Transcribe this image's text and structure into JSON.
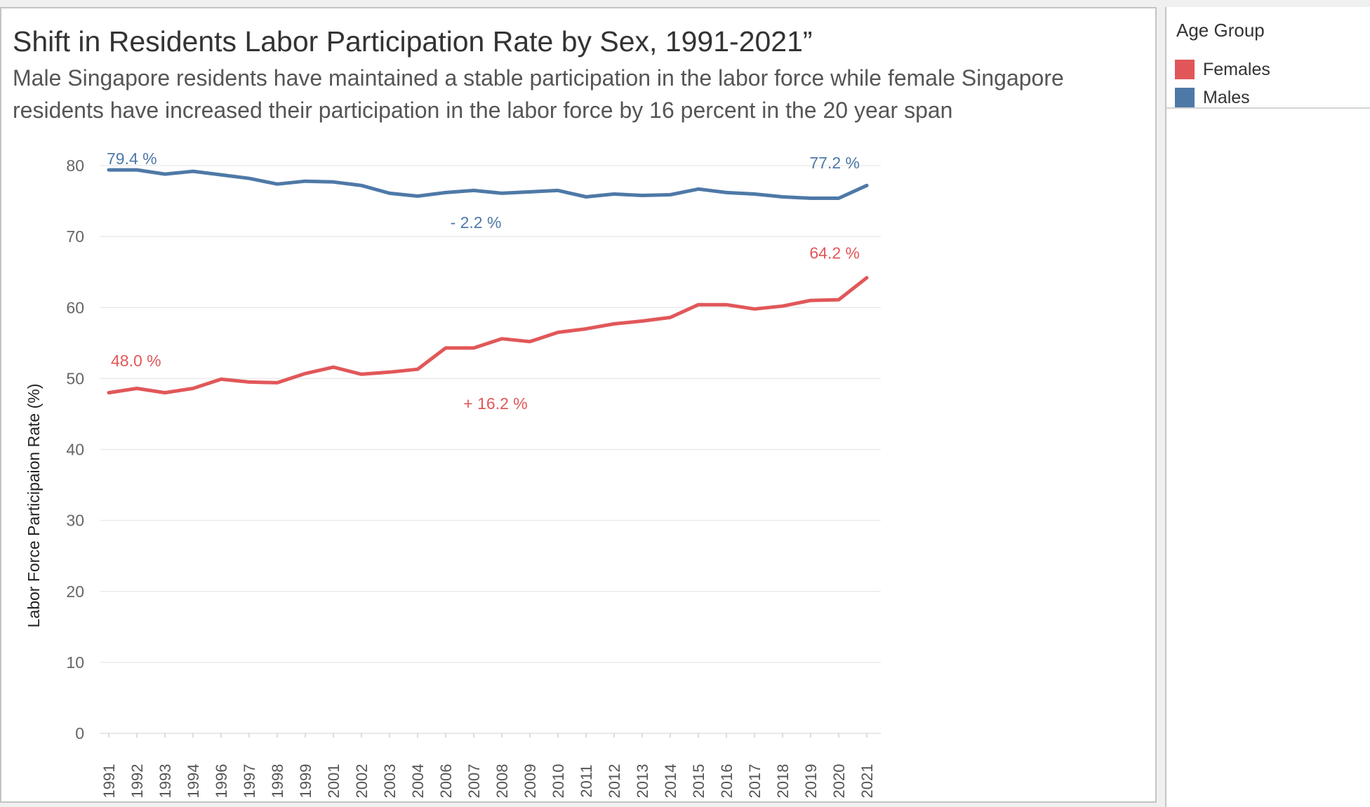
{
  "chart_data": {
    "type": "line",
    "title": "Shift in Residents Labor Participation Rate by Sex, 1991-2021”",
    "subtitle": "Male Singapore residents have maintained a stable participation in the labor force while female Singapore residents have increased their participation in the labor force by 16 percent in the 20 year span",
    "ylabel": "Labor Force Participaion Rate (%)",
    "xlabel": "",
    "ylim": [
      0,
      80
    ],
    "yticks": [
      0,
      10,
      20,
      30,
      40,
      50,
      60,
      70,
      80
    ],
    "grid": true,
    "categories": [
      "1991",
      "1992",
      "1993",
      "1994",
      "1996",
      "1997",
      "1998",
      "1999",
      "2001",
      "2002",
      "2003",
      "2004",
      "2006",
      "2007",
      "2008",
      "2009",
      "2010",
      "2011",
      "2012",
      "2013",
      "2014",
      "2015",
      "2016",
      "2017",
      "2018",
      "2019",
      "2020",
      "2021"
    ],
    "series": [
      {
        "name": "Males",
        "color": "#4e79a7",
        "values": [
          79.4,
          79.4,
          78.8,
          79.2,
          78.7,
          78.2,
          77.4,
          77.8,
          77.7,
          77.2,
          76.1,
          75.7,
          76.2,
          76.5,
          76.1,
          76.3,
          76.5,
          75.6,
          76.0,
          75.8,
          75.9,
          76.7,
          76.2,
          76.0,
          75.6,
          75.4,
          75.4,
          77.2
        ]
      },
      {
        "name": "Females",
        "color": "#e15759",
        "values": [
          48.0,
          48.6,
          48.0,
          48.6,
          49.9,
          49.5,
          49.4,
          50.7,
          51.6,
          50.6,
          50.9,
          51.3,
          54.3,
          54.3,
          55.6,
          55.2,
          56.5,
          57.0,
          57.7,
          58.1,
          58.6,
          60.4,
          60.4,
          59.8,
          60.2,
          61.0,
          61.1,
          64.2
        ]
      }
    ],
    "annotations": {
      "male_start": "79.4 %",
      "male_end": "77.2 %",
      "male_change": "- 2.2 %",
      "female_start": "48.0 %",
      "female_end": "64.2 %",
      "female_change": "+ 16.2 %"
    }
  },
  "legend": {
    "title": "Age Group",
    "items": [
      {
        "label": "Females",
        "color": "#e15759"
      },
      {
        "label": "Males",
        "color": "#4e79a7"
      }
    ]
  }
}
